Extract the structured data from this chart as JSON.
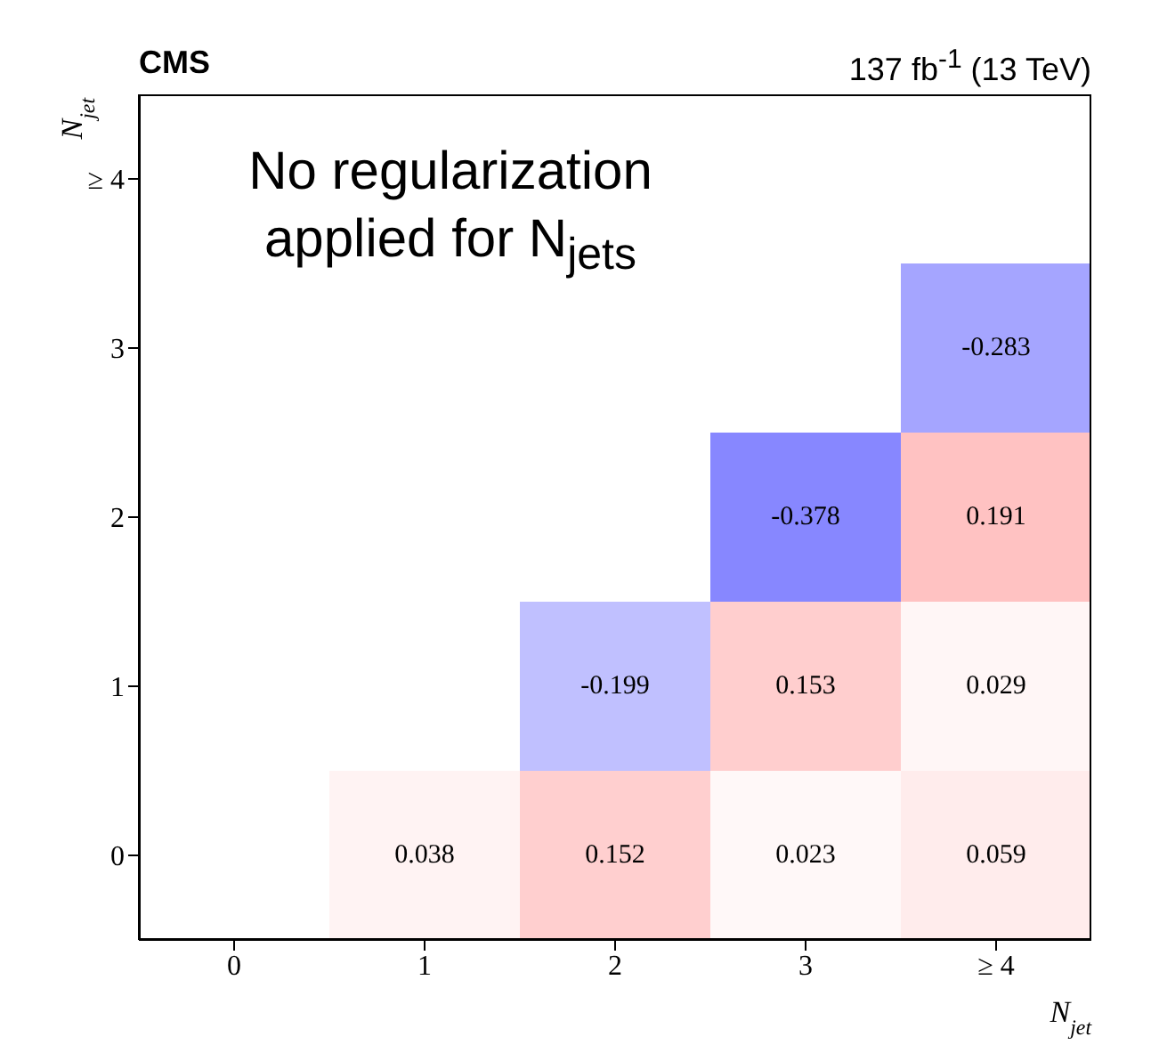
{
  "chart_data": {
    "type": "heatmap",
    "title": "CMS",
    "subtitle": "137 fb$^{-1}$ (13 TeV)",
    "xlabel": "N$_{jet}$",
    "ylabel": "N$_{jet}$",
    "annotations": [
      "No regularization applied for N$_{jets}$"
    ],
    "categories": [
      "0",
      "1",
      "2",
      "3",
      "≥ 4"
    ],
    "y_categories": [
      "≥ 4",
      "3",
      "2",
      "1",
      "0"
    ],
    "cells": [
      [
        null,
        null,
        null,
        null,
        null
      ],
      [
        null,
        null,
        null,
        null,
        -0.283
      ],
      [
        null,
        null,
        null,
        -0.378,
        0.191
      ],
      [
        null,
        null,
        -0.199,
        0.153,
        0.029
      ],
      [
        null,
        0.038,
        0.152,
        0.023,
        0.059
      ]
    ],
    "data_labels": true
  }
}
